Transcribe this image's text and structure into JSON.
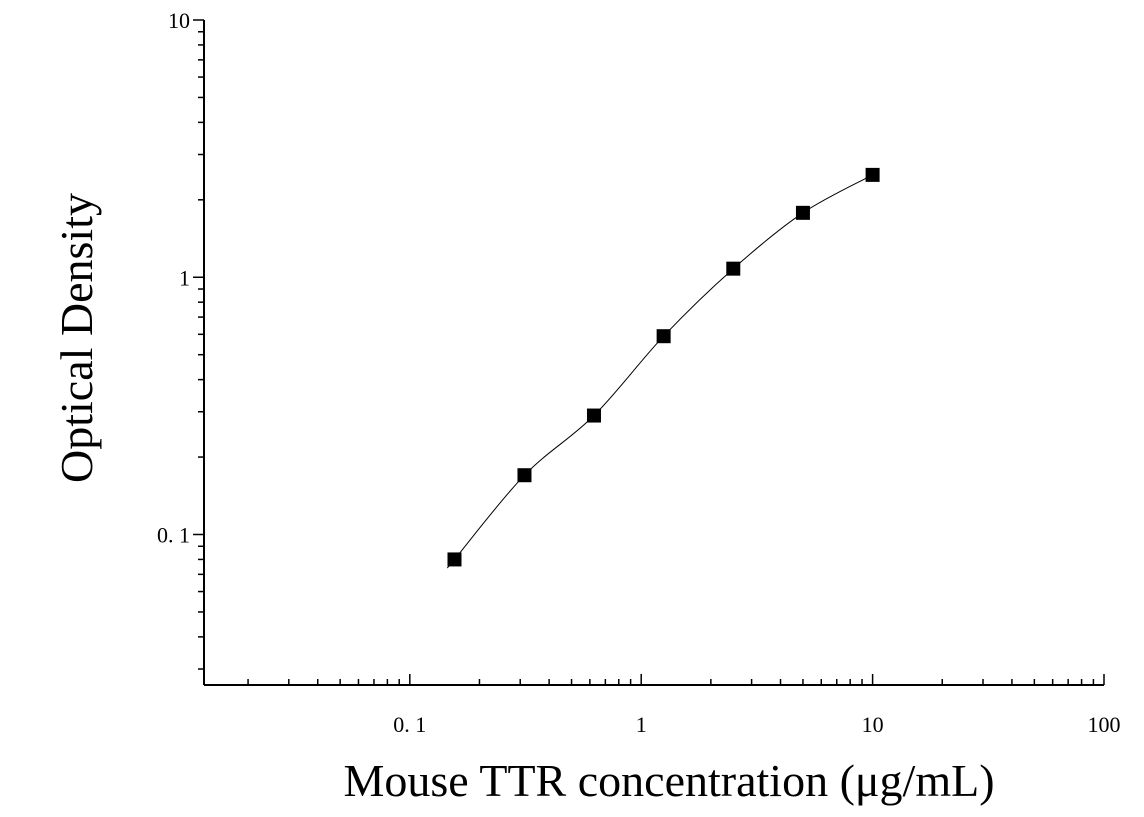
{
  "chart_data": {
    "type": "scatter",
    "xlabel": "Mouse TTR concentration (μg/mL)",
    "ylabel": "Optical Density",
    "xscale": "log",
    "yscale": "log",
    "xlim": [
      0.0129,
      100
    ],
    "ylim": [
      0.026,
      10
    ],
    "x_ticks": [
      {
        "value": 0.1,
        "label": "0. 1"
      },
      {
        "value": 1,
        "label": "1"
      },
      {
        "value": 10,
        "label": "10"
      },
      {
        "value": 100,
        "label": "100"
      }
    ],
    "y_ticks": [
      {
        "value": 0.1,
        "label": "0. 1"
      },
      {
        "value": 1,
        "label": "1"
      },
      {
        "value": 10,
        "label": "10"
      }
    ],
    "grid": false,
    "series": [
      {
        "marker": "square",
        "fit_line": true,
        "color": "#000000",
        "points": [
          {
            "x": 0.156,
            "y": 0.08
          },
          {
            "x": 0.313,
            "y": 0.17
          },
          {
            "x": 0.625,
            "y": 0.29
          },
          {
            "x": 1.25,
            "y": 0.59
          },
          {
            "x": 2.5,
            "y": 1.08
          },
          {
            "x": 5,
            "y": 1.78
          },
          {
            "x": 10,
            "y": 2.5
          }
        ]
      }
    ]
  }
}
